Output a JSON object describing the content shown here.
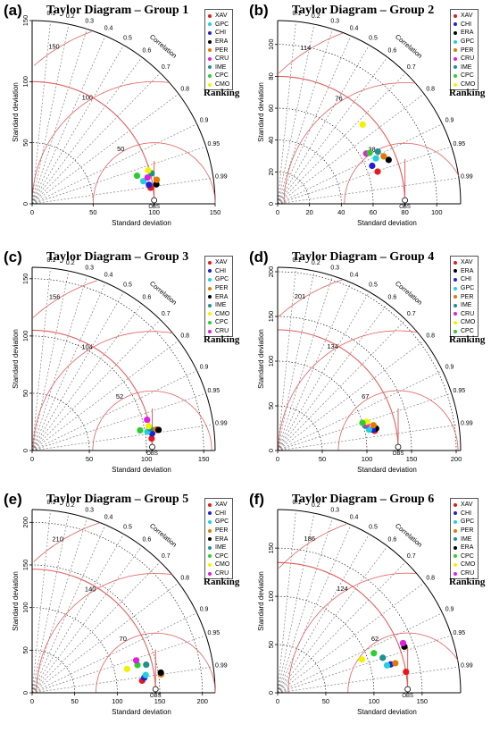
{
  "colors": {
    "XAV": "#e41a1c",
    "CHI": "#1f1fd6",
    "GPC": "#1fd0e0",
    "PER": "#e07b00",
    "ERA": "#000000",
    "IME": "#1f8f8f",
    "CPC": "#2ecc2e",
    "CMO": "#f2f200",
    "CRU": "#e01fe0",
    "correlation_lines": "#808080",
    "sd_arcs": "#000000",
    "rms_arcs": "#e06060",
    "obs_arc": "#e06060"
  },
  "common": {
    "xlabel": "Standard deviation",
    "ylabel": "Standard deviation",
    "corr_label": "Correlation",
    "corr_ticks": [
      "0.1",
      "0.2",
      "0.3",
      "0.4",
      "0.5",
      "0.6",
      "0.7",
      "0.8",
      "0.9",
      "0.95",
      "0.99"
    ],
    "obs_label": "OBS",
    "ranking_label": "Ranking"
  },
  "chart_data": [
    {
      "type": "scatter",
      "panel_label": "(a)",
      "title": "Taylor Diagram – Group 1",
      "max": 150,
      "ticks": [
        0,
        50,
        100,
        150
      ],
      "obs": 100,
      "rms_labels": [
        50,
        100,
        150
      ],
      "legend": [
        "XAV",
        "GPC",
        "CHI",
        "ERA",
        "PER",
        "CRU",
        "IME",
        "CPC",
        "CMO"
      ],
      "points": [
        {
          "model": "XAV",
          "sd": 98,
          "corr": 0.991
        },
        {
          "model": "GPC",
          "sd": 93,
          "corr": 0.98
        },
        {
          "model": "CHI",
          "sd": 97,
          "corr": 0.987
        },
        {
          "model": "ERA",
          "sd": 103,
          "corr": 0.988
        },
        {
          "model": "PER",
          "sd": 104,
          "corr": 0.982
        },
        {
          "model": "CRU",
          "sd": 97,
          "corr": 0.975
        },
        {
          "model": "IME",
          "sd": 101,
          "corr": 0.969
        },
        {
          "model": "CPC",
          "sd": 89,
          "corr": 0.966
        },
        {
          "model": "CMO",
          "sd": 99,
          "corr": 0.961
        }
      ]
    },
    {
      "type": "scatter",
      "panel_label": "(b)",
      "title": "Taylor Diagram – Group 2",
      "max": 115,
      "ticks": [
        0,
        20,
        40,
        60,
        80,
        100
      ],
      "obs": 80,
      "rms_labels": [
        38,
        76,
        114
      ],
      "legend": [
        "XAV",
        "CHI",
        "ERA",
        "GPC",
        "PER",
        "CRU",
        "IME",
        "CPC",
        "CMO"
      ],
      "points": [
        {
          "model": "XAV",
          "sd": 66,
          "corr": 0.952
        },
        {
          "model": "CHI",
          "sd": 64,
          "corr": 0.928
        },
        {
          "model": "ERA",
          "sd": 75,
          "corr": 0.93
        },
        {
          "model": "GPC",
          "sd": 68,
          "corr": 0.908
        },
        {
          "model": "PER",
          "sd": 73,
          "corr": 0.913
        },
        {
          "model": "CRU",
          "sd": 64,
          "corr": 0.87
        },
        {
          "model": "IME",
          "sd": 71,
          "corr": 0.887
        },
        {
          "model": "CPC",
          "sd": 66,
          "corr": 0.875
        },
        {
          "model": "CMO",
          "sd": 73,
          "corr": 0.732
        }
      ]
    },
    {
      "type": "scatter",
      "panel_label": "(c)",
      "title": "Taylor Diagram – Group 3",
      "max": 160,
      "ticks": [
        0,
        50,
        100,
        150
      ],
      "obs": 105,
      "rms_labels": [
        52,
        104,
        156
      ],
      "legend": [
        "XAV",
        "CHI",
        "GPC",
        "PER",
        "ERA",
        "IME",
        "CMO",
        "CPC",
        "CRU"
      ],
      "points": [
        {
          "model": "XAV",
          "sd": 105,
          "corr": 0.995
        },
        {
          "model": "CHI",
          "sd": 106,
          "corr": 0.99
        },
        {
          "model": "GPC",
          "sd": 102,
          "corr": 0.987
        },
        {
          "model": "PER",
          "sd": 110,
          "corr": 0.986
        },
        {
          "model": "ERA",
          "sd": 112,
          "corr": 0.987
        },
        {
          "model": "IME",
          "sd": 105,
          "corr": 0.983
        },
        {
          "model": "CMO",
          "sd": 104,
          "corr": 0.979
        },
        {
          "model": "CPC",
          "sd": 96,
          "corr": 0.983
        },
        {
          "model": "CRU",
          "sd": 104,
          "corr": 0.966
        }
      ]
    },
    {
      "type": "scatter",
      "panel_label": "(d)",
      "title": "Taylor Diagram – Group 4",
      "max": 205,
      "ticks": [
        0,
        50,
        100,
        150,
        200
      ],
      "obs": 135,
      "rms_labels": [
        67,
        134,
        201
      ],
      "legend": [
        "XAV",
        "ERA",
        "CHI",
        "GPC",
        "PER",
        "IME",
        "CRU",
        "CMO",
        "CPC"
      ],
      "points": [
        {
          "model": "XAV",
          "sd": 111,
          "corr": 0.98
        },
        {
          "model": "ERA",
          "sd": 113,
          "corr": 0.976
        },
        {
          "model": "CHI",
          "sd": 109,
          "corr": 0.977
        },
        {
          "model": "GPC",
          "sd": 105,
          "corr": 0.975
        },
        {
          "model": "PER",
          "sd": 111,
          "corr": 0.967
        },
        {
          "model": "IME",
          "sd": 102,
          "corr": 0.962
        },
        {
          "model": "CRU",
          "sd": 104,
          "corr": 0.96
        },
        {
          "model": "CMO",
          "sd": 105,
          "corr": 0.952
        },
        {
          "model": "CPC",
          "sd": 100,
          "corr": 0.951
        }
      ]
    },
    {
      "type": "scatter",
      "panel_label": "(e)",
      "title": "Taylor Diagram – Group 5",
      "max": 215,
      "ticks": [
        0,
        50,
        100,
        150,
        200
      ],
      "obs": 145,
      "rms_labels": [
        70,
        140,
        210
      ],
      "legend": [
        "XAV",
        "CHI",
        "GPC",
        "PER",
        "ERA",
        "IME",
        "CPC",
        "CMO",
        "CRU"
      ],
      "points": [
        {
          "model": "XAV",
          "sd": 130,
          "corr": 0.994
        },
        {
          "model": "CHI",
          "sd": 133,
          "corr": 0.991
        },
        {
          "model": "GPC",
          "sd": 135,
          "corr": 0.988
        },
        {
          "model": "PER",
          "sd": 153,
          "corr": 0.99
        },
        {
          "model": "ERA",
          "sd": 153,
          "corr": 0.988
        },
        {
          "model": "IME",
          "sd": 138,
          "corr": 0.971
        },
        {
          "model": "CPC",
          "sd": 128,
          "corr": 0.967
        },
        {
          "model": "CMO",
          "sd": 115,
          "corr": 0.97
        },
        {
          "model": "CRU",
          "sd": 128,
          "corr": 0.955
        }
      ]
    },
    {
      "type": "scatter",
      "panel_label": "(f)",
      "title": "Taylor Diagram – Group 6",
      "max": 190,
      "ticks": [
        0,
        50,
        100,
        150
      ],
      "obs": 135,
      "rms_labels": [
        62,
        124,
        186
      ],
      "legend": [
        "XAV",
        "CHI",
        "GPC",
        "PER",
        "IME",
        "ERA",
        "CPC",
        "CMO",
        "CRU"
      ],
      "points": [
        {
          "model": "XAV",
          "sd": 135,
          "corr": 0.987
        },
        {
          "model": "CHI",
          "sd": 121,
          "corr": 0.97
        },
        {
          "model": "GPC",
          "sd": 117,
          "corr": 0.97
        },
        {
          "model": "PER",
          "sd": 126,
          "corr": 0.97
        },
        {
          "model": "IME",
          "sd": 115,
          "corr": 0.949
        },
        {
          "model": "ERA",
          "sd": 140,
          "corr": 0.94
        },
        {
          "model": "CPC",
          "sd": 108,
          "corr": 0.925
        },
        {
          "model": "CMO",
          "sd": 94,
          "corr": 0.93
        },
        {
          "model": "CRU",
          "sd": 140,
          "corr": 0.93
        }
      ]
    }
  ]
}
